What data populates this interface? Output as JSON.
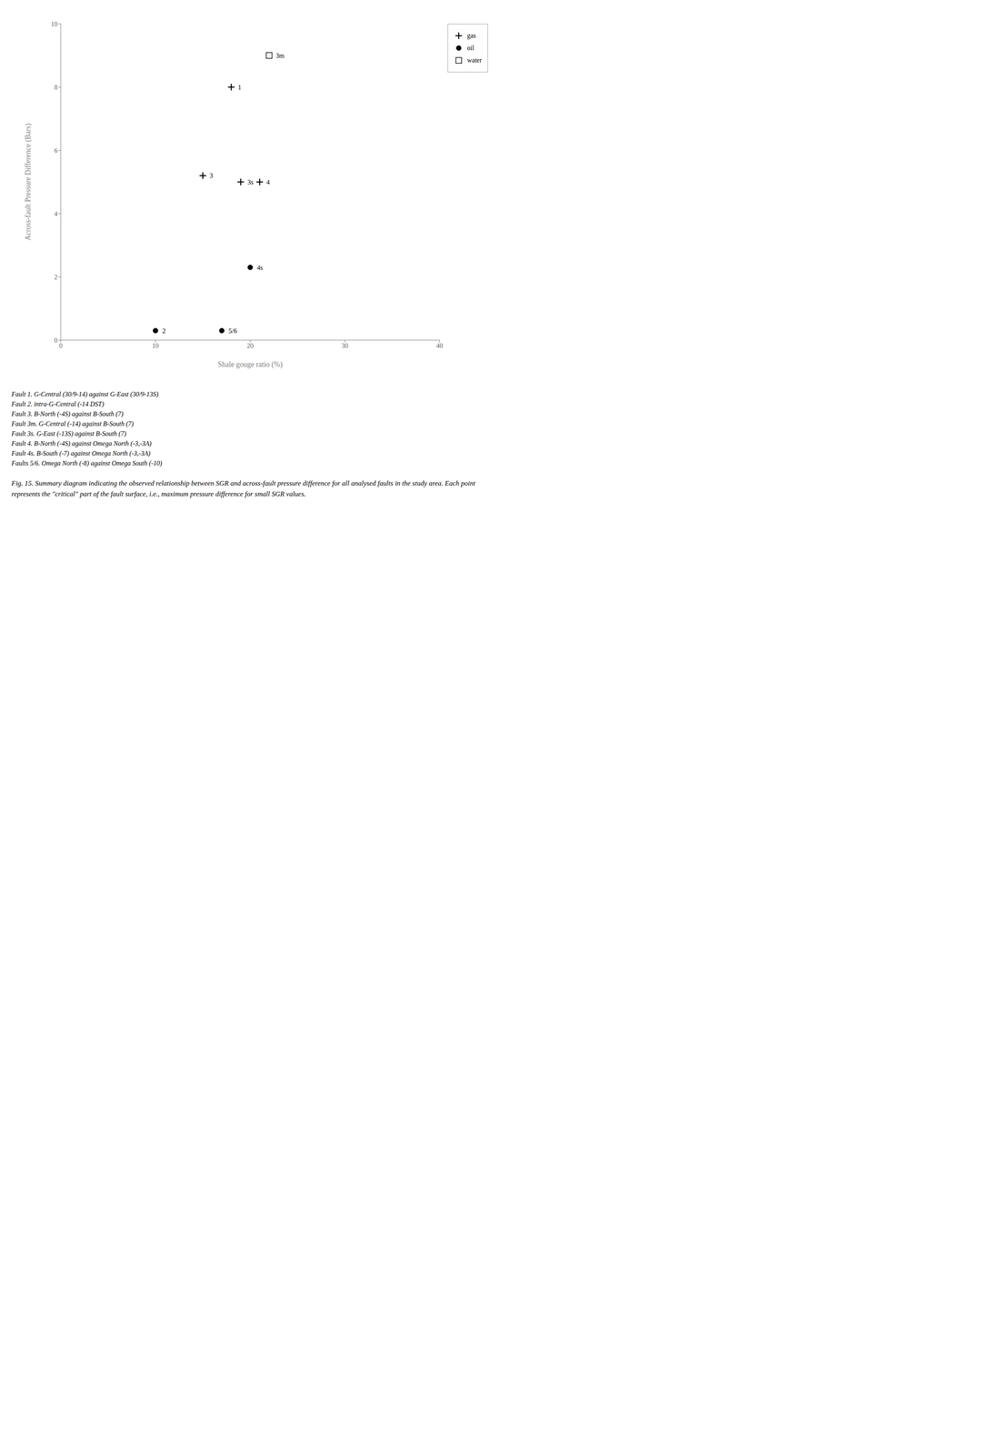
{
  "chart_data": {
    "type": "scatter",
    "title": "Fig. 15. Summary diagram indicating the observed relationship between SGR and across-fault pressure difference for all analysed faults in the study area. Each point represents the \"critical\" part of the fault surface, i.e., maximum pressure difference for small SGR values.",
    "xlabel": "Shale gouge ratio (%)",
    "ylabel": "Across-fault Pressure Difference (Bars)",
    "xlim": [
      0,
      40
    ],
    "ylim": [
      0,
      10
    ],
    "xticks": [
      0,
      10,
      20,
      30,
      40
    ],
    "yticks": [
      0,
      2,
      4,
      6,
      8,
      10
    ],
    "grid": false,
    "legend": "right",
    "series": [
      {
        "name": "gas",
        "marker": "cross",
        "color": "black",
        "x": [
          18,
          15,
          19,
          21
        ],
        "y": [
          8,
          5.2,
          5.0,
          5.0
        ],
        "labels": [
          "1",
          "3",
          "3s",
          "4"
        ]
      },
      {
        "name": "oil",
        "marker": "circle",
        "color": "black",
        "x": [
          10,
          20,
          17
        ],
        "y": [
          0.3,
          2.3,
          0.3
        ],
        "labels": [
          "2",
          "4s",
          "5/6"
        ]
      },
      {
        "name": "water",
        "marker": "square",
        "color": "white",
        "x": [
          22
        ],
        "y": [
          9
        ],
        "labels": [
          "3m"
        ]
      }
    ],
    "annotations": [
      "Fault 1. G-Central (30/9-14) against G-East (30/9-13S)",
      "Fault 2. intra-G-Central (-14 DST)",
      "Fault 3. B-North (-4S) against B-South (7)",
      "Fault 3m. G-Central (-14) against B-South (7)",
      "Fault 3s. G-East (-13S) against B-South (7)",
      "Fault 4. B-North (-4S) against Omega North (-3,-3A)",
      "Fault 4s. B-South (-7) against Omega North (-3,-3A)",
      "Faults 5/6. Omega North (-8) against Omega South (-10)"
    ]
  }
}
